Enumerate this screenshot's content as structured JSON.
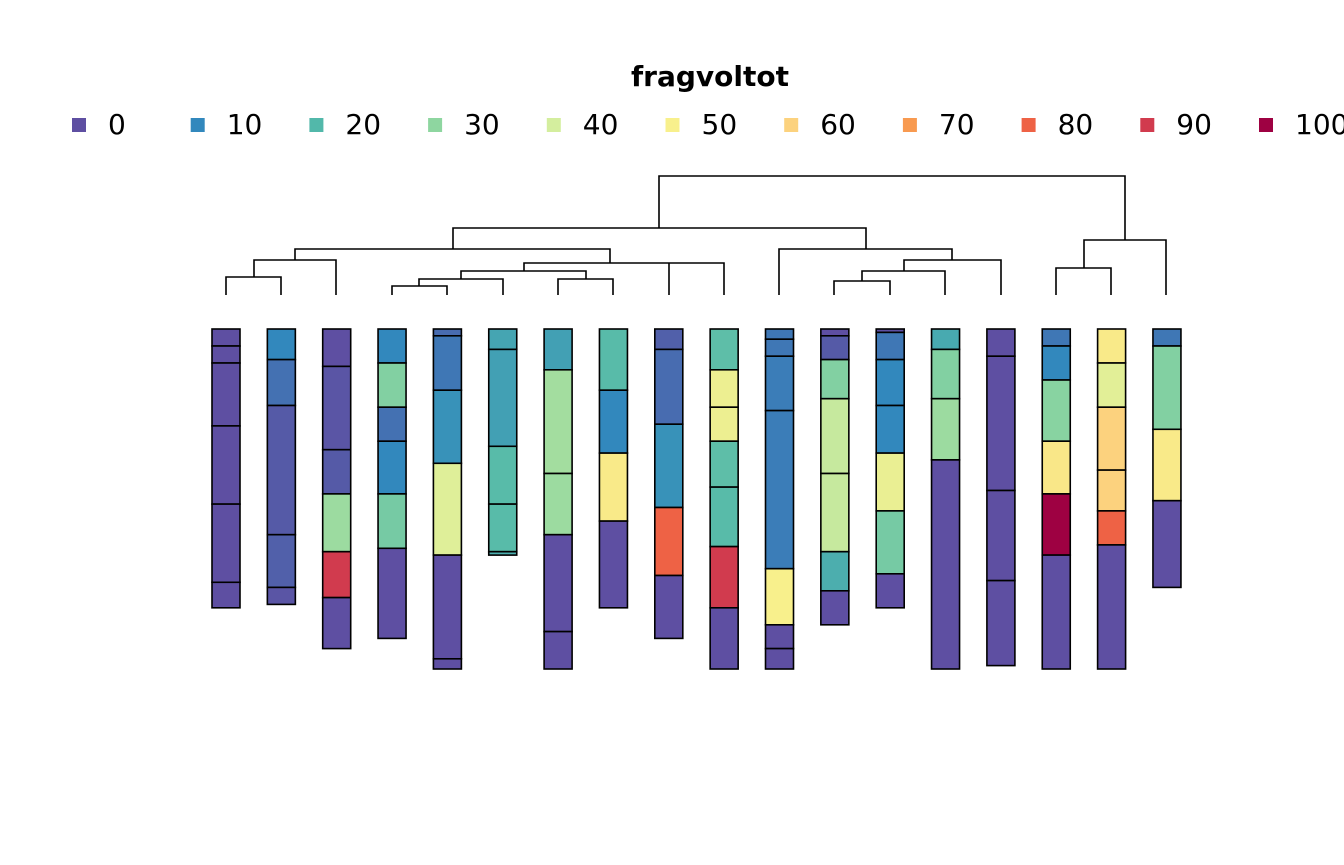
{
  "chart_data": {
    "type": "profiles",
    "legend_title": "fragvoltot",
    "scale": {
      "values": [
        0,
        10,
        20,
        30,
        40,
        50,
        60,
        70,
        80,
        90,
        100
      ],
      "colors": [
        "#5e4fa2",
        "#3288bd",
        "#52b8aa",
        "#8ed6a0",
        "#d4ee9e",
        "#f8f08c",
        "#fcd27e",
        "#f89a50",
        "#ee6245",
        "#d13b4e",
        "#9e0142"
      ]
    },
    "ylim": [
      0,
      200
    ],
    "profiles": [
      {
        "horizons": [
          {
            "top": 0,
            "bottom": 10,
            "value": 0
          },
          {
            "top": 10,
            "bottom": 20,
            "value": 0
          },
          {
            "top": 20,
            "bottom": 57,
            "value": 0
          },
          {
            "top": 57,
            "bottom": 103,
            "value": 0
          },
          {
            "top": 103,
            "bottom": 149,
            "value": 0
          },
          {
            "top": 149,
            "bottom": 164,
            "value": 0
          }
        ]
      },
      {
        "horizons": [
          {
            "top": 0,
            "bottom": 18,
            "value": 10
          },
          {
            "top": 18,
            "bottom": 45,
            "value": 6
          },
          {
            "top": 45,
            "bottom": 121,
            "value": 2
          },
          {
            "top": 121,
            "bottom": 152,
            "value": 3
          },
          {
            "top": 152,
            "bottom": 162,
            "value": 1
          }
        ]
      },
      {
        "horizons": [
          {
            "top": 0,
            "bottom": 22,
            "value": 0
          },
          {
            "top": 22,
            "bottom": 71,
            "value": 1
          },
          {
            "top": 71,
            "bottom": 97,
            "value": 2
          },
          {
            "top": 97,
            "bottom": 131,
            "value": 32
          },
          {
            "top": 131,
            "bottom": 158,
            "value": 90
          },
          {
            "top": 158,
            "bottom": 188,
            "value": 0
          }
        ]
      },
      {
        "horizons": [
          {
            "top": 0,
            "bottom": 20,
            "value": 10
          },
          {
            "top": 20,
            "bottom": 46,
            "value": 28
          },
          {
            "top": 46,
            "bottom": 66,
            "value": 6
          },
          {
            "top": 66,
            "bottom": 97,
            "value": 10
          },
          {
            "top": 97,
            "bottom": 129,
            "value": 26
          },
          {
            "top": 129,
            "bottom": 182,
            "value": 0
          }
        ]
      },
      {
        "horizons": [
          {
            "top": 0,
            "bottom": 4,
            "value": 5
          },
          {
            "top": 4,
            "bottom": 36,
            "value": 7
          },
          {
            "top": 36,
            "bottom": 79,
            "value": 12
          },
          {
            "top": 79,
            "bottom": 133,
            "value": 43
          },
          {
            "top": 133,
            "bottom": 194,
            "value": 0
          },
          {
            "top": 194,
            "bottom": 200,
            "value": 0
          }
        ]
      },
      {
        "horizons": [
          {
            "top": 0,
            "bottom": 12,
            "value": 16
          },
          {
            "top": 12,
            "bottom": 69,
            "value": 15
          },
          {
            "top": 69,
            "bottom": 103,
            "value": 21
          },
          {
            "top": 103,
            "bottom": 131,
            "value": 21
          },
          {
            "top": 131,
            "bottom": 133,
            "value": 18
          }
        ]
      },
      {
        "horizons": [
          {
            "top": 0,
            "bottom": 24,
            "value": 15
          },
          {
            "top": 24,
            "bottom": 85,
            "value": 33
          },
          {
            "top": 85,
            "bottom": 121,
            "value": 32
          },
          {
            "top": 121,
            "bottom": 178,
            "value": 0
          },
          {
            "top": 178,
            "bottom": 200,
            "value": 0
          }
        ]
      },
      {
        "horizons": [
          {
            "top": 0,
            "bottom": 36,
            "value": 21
          },
          {
            "top": 36,
            "bottom": 73,
            "value": 10
          },
          {
            "top": 73,
            "bottom": 113,
            "value": 52
          },
          {
            "top": 113,
            "bottom": 164,
            "value": 0
          }
        ]
      },
      {
        "horizons": [
          {
            "top": 0,
            "bottom": 12,
            "value": 3
          },
          {
            "top": 12,
            "bottom": 56,
            "value": 5
          },
          {
            "top": 56,
            "bottom": 105,
            "value": 12
          },
          {
            "top": 105,
            "bottom": 145,
            "value": 80
          },
          {
            "top": 145,
            "bottom": 182,
            "value": 0
          }
        ]
      },
      {
        "horizons": [
          {
            "top": 0,
            "bottom": 24,
            "value": 22
          },
          {
            "top": 24,
            "bottom": 46,
            "value": 47
          },
          {
            "top": 46,
            "bottom": 66,
            "value": 47
          },
          {
            "top": 66,
            "bottom": 93,
            "value": 22
          },
          {
            "top": 93,
            "bottom": 128,
            "value": 21
          },
          {
            "top": 128,
            "bottom": 164,
            "value": 90
          },
          {
            "top": 164,
            "bottom": 200,
            "value": 0
          }
        ]
      },
      {
        "horizons": [
          {
            "top": 0,
            "bottom": 6,
            "value": 7
          },
          {
            "top": 6,
            "bottom": 16,
            "value": 7
          },
          {
            "top": 16,
            "bottom": 48,
            "value": 8
          },
          {
            "top": 48,
            "bottom": 141,
            "value": 8
          },
          {
            "top": 141,
            "bottom": 174,
            "value": 50
          },
          {
            "top": 174,
            "bottom": 188,
            "value": 0
          },
          {
            "top": 188,
            "bottom": 200,
            "value": 0
          }
        ]
      },
      {
        "horizons": [
          {
            "top": 0,
            "bottom": 4,
            "value": 0
          },
          {
            "top": 4,
            "bottom": 18,
            "value": 2
          },
          {
            "top": 18,
            "bottom": 41,
            "value": 28
          },
          {
            "top": 41,
            "bottom": 85,
            "value": 38
          },
          {
            "top": 85,
            "bottom": 131,
            "value": 38
          },
          {
            "top": 131,
            "bottom": 154,
            "value": 18
          },
          {
            "top": 154,
            "bottom": 174,
            "value": 0
          }
        ]
      },
      {
        "horizons": [
          {
            "top": 0,
            "bottom": 2,
            "value": 0
          },
          {
            "top": 2,
            "bottom": 18,
            "value": 7
          },
          {
            "top": 18,
            "bottom": 45,
            "value": 10
          },
          {
            "top": 45,
            "bottom": 73,
            "value": 10
          },
          {
            "top": 73,
            "bottom": 107,
            "value": 46
          },
          {
            "top": 107,
            "bottom": 144,
            "value": 26
          },
          {
            "top": 144,
            "bottom": 164,
            "value": 0
          }
        ]
      },
      {
        "horizons": [
          {
            "top": 0,
            "bottom": 12,
            "value": 17
          },
          {
            "top": 12,
            "bottom": 41,
            "value": 28
          },
          {
            "top": 41,
            "bottom": 77,
            "value": 32
          },
          {
            "top": 77,
            "bottom": 200,
            "value": 0
          }
        ]
      },
      {
        "horizons": [
          {
            "top": 0,
            "bottom": 16,
            "value": 0
          },
          {
            "top": 16,
            "bottom": 95,
            "value": 0
          },
          {
            "top": 95,
            "bottom": 148,
            "value": 0
          },
          {
            "top": 148,
            "bottom": 198,
            "value": 0
          }
        ]
      },
      {
        "horizons": [
          {
            "top": 0,
            "bottom": 10,
            "value": 7
          },
          {
            "top": 10,
            "bottom": 30,
            "value": 10
          },
          {
            "top": 30,
            "bottom": 66,
            "value": 29
          },
          {
            "top": 66,
            "bottom": 97,
            "value": 53
          },
          {
            "top": 97,
            "bottom": 133,
            "value": 100
          },
          {
            "top": 133,
            "bottom": 200,
            "value": 0
          }
        ]
      },
      {
        "horizons": [
          {
            "top": 0,
            "bottom": 20,
            "value": 52
          },
          {
            "top": 20,
            "bottom": 46,
            "value": 44
          },
          {
            "top": 46,
            "bottom": 83,
            "value": 60
          },
          {
            "top": 83,
            "bottom": 107,
            "value": 60
          },
          {
            "top": 107,
            "bottom": 127,
            "value": 80
          },
          {
            "top": 127,
            "bottom": 200,
            "value": 0
          }
        ]
      },
      {
        "horizons": [
          {
            "top": 0,
            "bottom": 10,
            "value": 7
          },
          {
            "top": 10,
            "bottom": 59,
            "value": 28
          },
          {
            "top": 59,
            "bottom": 101,
            "value": 52
          },
          {
            "top": 101,
            "bottom": 152,
            "value": 0
          }
        ]
      }
    ]
  }
}
